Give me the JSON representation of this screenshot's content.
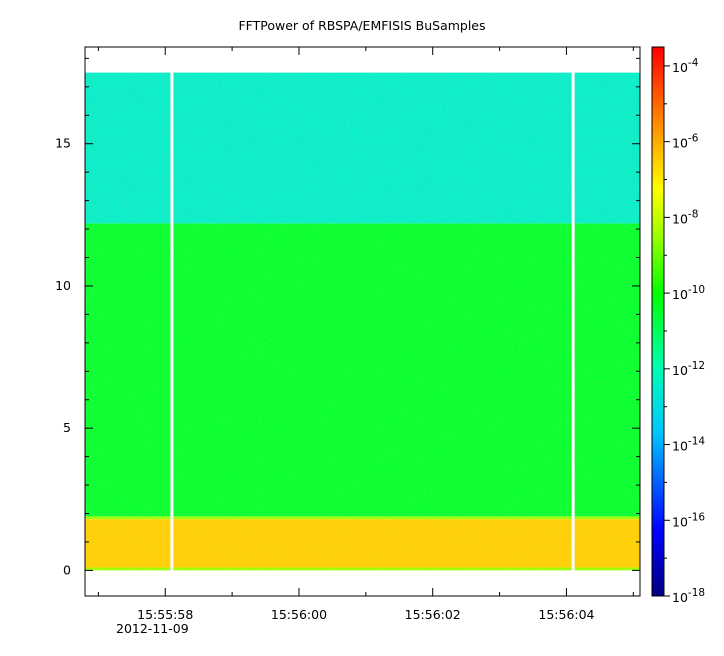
{
  "chart_data": {
    "type": "heatmap",
    "title": "FFTPower of RBSPA/EMFISIS  BuSamples",
    "xlabel": "",
    "ylabel": "",
    "x_ticks": [
      "15:55:58",
      "15:56:00",
      "15:56:02",
      "15:56:04"
    ],
    "x_tick_values_seconds": [
      58,
      60,
      62,
      64
    ],
    "x_date_label": "2012-11-09",
    "xlim_seconds": [
      56.8,
      65.1
    ],
    "y_ticks": [
      "0",
      "5",
      "10",
      "15"
    ],
    "y_tick_values": [
      0,
      5,
      10,
      15
    ],
    "ylim": [
      -0.9,
      18.4
    ],
    "colorbar": {
      "scale": "log",
      "range_exponents": [
        -18,
        -3.5
      ],
      "tick_exponents": [
        -18,
        -16,
        -14,
        -12,
        -10,
        -8,
        -6,
        -4
      ],
      "tick_base": "10"
    },
    "bands": [
      {
        "y_from": 0.0,
        "y_to": 0.1,
        "log_power": -8.5
      },
      {
        "y_from": 0.1,
        "y_to": 1.8,
        "log_power": -6.5
      },
      {
        "y_from": 1.8,
        "y_to": 1.9,
        "log_power": -8.5
      },
      {
        "y_from": 1.9,
        "y_to": 12.2,
        "log_power": -10.5
      },
      {
        "y_from": 12.2,
        "y_to": 17.5,
        "log_power": -12.5
      }
    ],
    "data_gaps_seconds": [
      58.1,
      64.1
    ],
    "colors": {
      "high": "#ff0000",
      "mid": "#ffff00",
      "low_mid": "#00ff00",
      "low": "#00ffff",
      "lowest": "#000080"
    }
  }
}
